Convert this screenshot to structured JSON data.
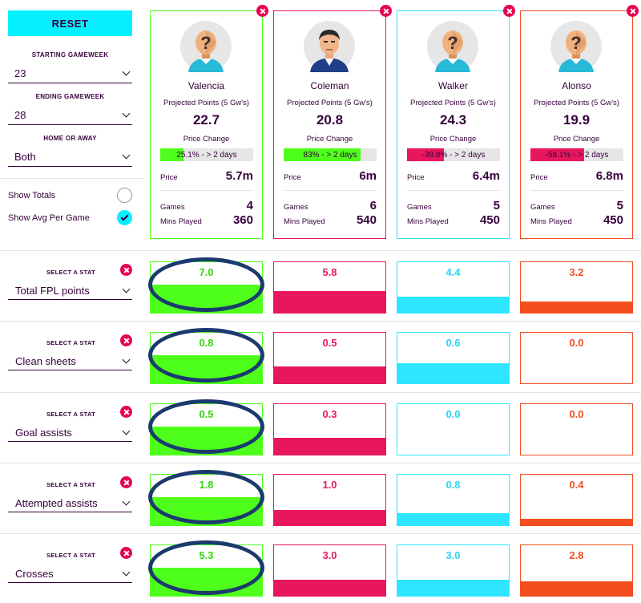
{
  "left_panel": {
    "reset_label": "RESET",
    "starting_gameweek": {
      "label": "STARTING GAMEWEEK",
      "value": "23"
    },
    "ending_gameweek": {
      "label": "ENDING GAMEWEEK",
      "value": "28"
    },
    "home_or_away": {
      "label": "HOME OR AWAY",
      "value": "Both"
    },
    "show_totals": {
      "label": "Show Totals",
      "checked": false
    },
    "show_avg": {
      "label": "Show Avg Per Game",
      "checked": true
    }
  },
  "labels": {
    "projected_points": "Projected Points (5 Gw's)",
    "price_change": "Price Change",
    "price": "Price",
    "games": "Games",
    "mins_played": "Mins Played",
    "select_a_stat": "SELECT A STAT"
  },
  "colors": {
    "green": "#4dff1a",
    "pink": "#e8175d",
    "cyan": "#2ee6ff",
    "orange": "#f24e1e",
    "dark_purple": "#37003c",
    "ellipse": "#1b3a6e"
  },
  "players": [
    {
      "name": "Valencia",
      "color": "#4dff1a",
      "text_color": "#36d60b",
      "projected_points": "22.7",
      "price_change_text": "25.1% - > 2 days",
      "price_change_pct": 25.1,
      "price_change_dir": "up",
      "price": "5.7m",
      "games": "4",
      "mins_played": "360",
      "avatar": "unknown-player"
    },
    {
      "name": "Coleman",
      "color": "#e8175d",
      "text_color": "#e8175d",
      "projected_points": "20.8",
      "price_change_text": "83% - > 2 days",
      "price_change_pct": 83,
      "price_change_dir": "up",
      "price": "6m",
      "games": "6",
      "mins_played": "540",
      "avatar": "player-photo"
    },
    {
      "name": "Walker",
      "color": "#2ee6ff",
      "text_color": "#2ed3f0",
      "projected_points": "24.3",
      "price_change_text": "-39.8% - > 2 days",
      "price_change_pct": 39.8,
      "price_change_dir": "down",
      "price": "6.4m",
      "games": "5",
      "mins_played": "450",
      "avatar": "unknown-player"
    },
    {
      "name": "Alonso",
      "color": "#f24e1e",
      "text_color": "#f24e1e",
      "projected_points": "19.9",
      "price_change_text": "-58.1% - > 2 days",
      "price_change_pct": 58.1,
      "price_change_dir": "down",
      "price": "6.8m",
      "games": "5",
      "mins_played": "450",
      "avatar": "unknown-player"
    }
  ],
  "stats": [
    {
      "name": "Total FPL points",
      "values": [
        "7.0",
        "5.8",
        "4.4",
        "3.2"
      ],
      "fills": [
        0.55,
        0.43,
        0.32,
        0.22
      ]
    },
    {
      "name": "Clean sheets",
      "values": [
        "0.8",
        "0.5",
        "0.6",
        "0.0"
      ],
      "fills": [
        0.55,
        0.33,
        0.4,
        0.0
      ]
    },
    {
      "name": "Goal assists",
      "values": [
        "0.5",
        "0.3",
        "0.0",
        "0.0"
      ],
      "fills": [
        0.55,
        0.33,
        0.0,
        0.0
      ]
    },
    {
      "name": "Attempted assists",
      "values": [
        "1.8",
        "1.0",
        "0.8",
        "0.4"
      ],
      "fills": [
        0.55,
        0.3,
        0.24,
        0.12
      ]
    },
    {
      "name": "Crosses",
      "values": [
        "5.3",
        "3.0",
        "3.0",
        "2.8"
      ],
      "fills": [
        0.55,
        0.31,
        0.31,
        0.29
      ]
    }
  ]
}
